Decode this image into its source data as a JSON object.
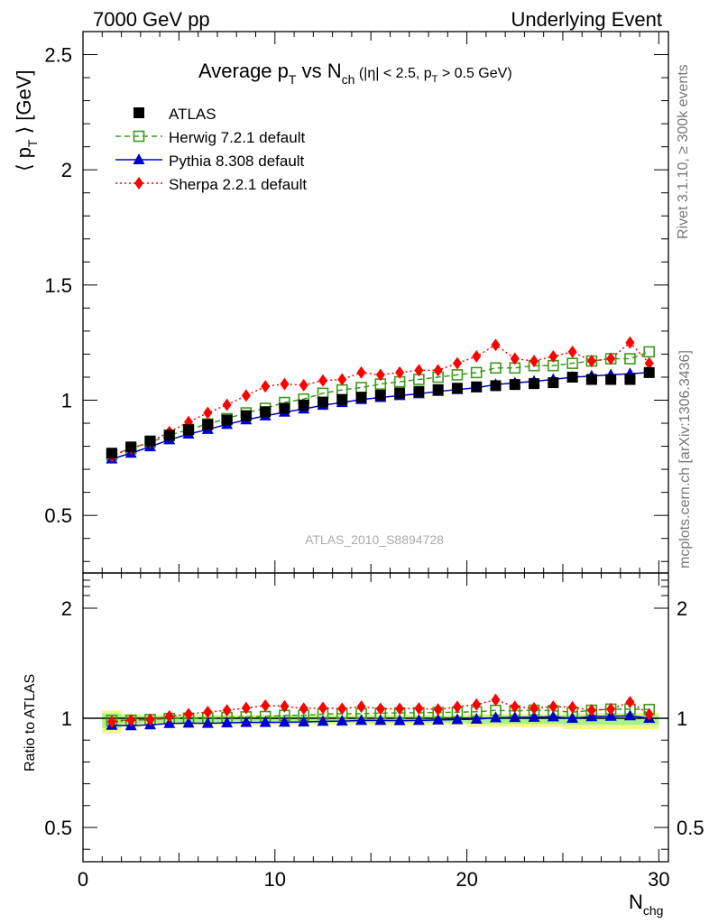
{
  "header": {
    "left": "7000 GeV pp",
    "right": "Underlying Event"
  },
  "side_text": {
    "rivet": "Rivet 3.1.10, ≥ 300k events",
    "mcplots": "mcplots.cern.ch [arXiv:1306.3436]"
  },
  "watermark": "ATLAS_2010_S8894728",
  "chart_data": {
    "type": "scatter",
    "title": "Average p_T vs N_ch (|η| < 2.5, p_T > 0.5 GeV)",
    "title_parts": {
      "main": "Average p",
      "main_sub": "T",
      "vs": " vs N",
      "vs_sub": "ch",
      "cut1": " (|η| < 2.5, p",
      "cut_sub": "T",
      "cut2": " > 0.5 GeV)"
    },
    "ylabel": "⟨ p_T ⟩ [GeV]",
    "ylabel_parts": {
      "pre": "⟨ p",
      "sub": "T",
      "post": " ⟩ [GeV]"
    },
    "xlabel": "N_chg",
    "xlabel_parts": {
      "main": "N",
      "sub": "chg"
    },
    "ratio_ylabel": "Ratio to ATLAS",
    "xlim": [
      0,
      30.5
    ],
    "ylim": [
      0.25,
      2.6
    ],
    "ratio_ylim": [
      0.35,
      2.25
    ],
    "x_ticks": [
      "0",
      "10",
      "20",
      "30"
    ],
    "y_ticks": [
      "0.5",
      "1",
      "1.5",
      "2",
      "2.5"
    ],
    "ratio_ticks": [
      "0.5",
      "1",
      "2"
    ],
    "legend_position": "top-left",
    "x": [
      1.5,
      2.5,
      3.5,
      4.5,
      5.5,
      6.5,
      7.5,
      8.5,
      9.5,
      10.5,
      11.5,
      12.5,
      13.5,
      14.5,
      15.5,
      16.5,
      17.5,
      18.5,
      19.5,
      20.5,
      21.5,
      22.5,
      23.5,
      24.5,
      25.5,
      26.5,
      27.5,
      28.5,
      29.5
    ],
    "series": [
      {
        "name": "ATLAS",
        "color": "#000000",
        "marker": "square",
        "values": [
          0.77,
          0.797,
          0.823,
          0.848,
          0.872,
          0.894,
          0.914,
          0.933,
          0.95,
          0.965,
          0.979,
          0.992,
          1.003,
          1.013,
          1.022,
          1.031,
          1.038,
          1.046,
          1.052,
          1.058,
          1.063,
          1.068,
          1.072,
          1.076,
          1.1,
          1.09,
          1.09,
          1.09,
          1.12
        ]
      },
      {
        "name": "Herwig 7.2.1 default",
        "color": "#3a9a1a",
        "marker": "open-square",
        "line": "dashed",
        "values": [
          0.762,
          0.79,
          0.818,
          0.847,
          0.873,
          0.897,
          0.92,
          0.945,
          0.965,
          0.99,
          1.005,
          1.03,
          1.045,
          1.055,
          1.07,
          1.08,
          1.09,
          1.1,
          1.11,
          1.12,
          1.14,
          1.14,
          1.15,
          1.15,
          1.16,
          1.17,
          1.18,
          1.18,
          1.21
        ]
      },
      {
        "name": "Pythia 8.308 default",
        "color": "#0000cc",
        "marker": "triangle",
        "line": "solid",
        "values": [
          0.745,
          0.77,
          0.798,
          0.828,
          0.853,
          0.873,
          0.895,
          0.915,
          0.932,
          0.948,
          0.962,
          0.978,
          0.99,
          1.003,
          1.012,
          1.02,
          1.028,
          1.038,
          1.046,
          1.054,
          1.068,
          1.075,
          1.082,
          1.09,
          1.1,
          1.105,
          1.11,
          1.115,
          1.12
        ]
      },
      {
        "name": "Sherpa 2.2.1 default",
        "color": "#ff0000",
        "marker": "diamond",
        "line": "dotted",
        "values": [
          0.758,
          0.79,
          0.818,
          0.862,
          0.905,
          0.945,
          0.98,
          1.02,
          1.06,
          1.07,
          1.065,
          1.085,
          1.09,
          1.12,
          1.11,
          1.12,
          1.13,
          1.13,
          1.16,
          1.19,
          1.24,
          1.18,
          1.17,
          1.19,
          1.21,
          1.17,
          1.18,
          1.25,
          1.16
        ]
      }
    ],
    "ratio_series": [
      {
        "name": "Herwig 7.2.1 default",
        "values": [
          0.99,
          0.991,
          0.994,
          0.999,
          1.001,
          1.003,
          1.007,
          1.013,
          1.016,
          1.026,
          1.027,
          1.038,
          1.042,
          1.042,
          1.047,
          1.048,
          1.05,
          1.052,
          1.055,
          1.059,
          1.072,
          1.067,
          1.073,
          1.069,
          1.055,
          1.073,
          1.083,
          1.083,
          1.08
        ]
      },
      {
        "name": "Pythia 8.308 default",
        "values": [
          0.968,
          0.966,
          0.97,
          0.976,
          0.978,
          0.977,
          0.979,
          0.981,
          0.981,
          0.982,
          0.983,
          0.986,
          0.987,
          0.99,
          0.99,
          0.989,
          0.99,
          0.992,
          0.994,
          0.996,
          1.005,
          1.007,
          1.009,
          1.013,
          1.0,
          1.014,
          1.018,
          1.023,
          1.0
        ]
      },
      {
        "name": "Sherpa 2.2.1 default",
        "values": [
          0.984,
          0.991,
          0.994,
          1.017,
          1.038,
          1.057,
          1.072,
          1.093,
          1.116,
          1.109,
          1.088,
          1.094,
          1.087,
          1.106,
          1.086,
          1.086,
          1.089,
          1.08,
          1.103,
          1.125,
          1.167,
          1.105,
          1.091,
          1.106,
          1.1,
          1.073,
          1.083,
          1.147,
          1.036
        ]
      }
    ],
    "uncertainty_band": {
      "inner_halfwidth": [
        0.045,
        0.025,
        0.02,
        0.02,
        0.02,
        0.02,
        0.02,
        0.02,
        0.02,
        0.02,
        0.02,
        0.02,
        0.02,
        0.02,
        0.02,
        0.02,
        0.02,
        0.02,
        0.02,
        0.025,
        0.025,
        0.025,
        0.025,
        0.025,
        0.03,
        0.03,
        0.03,
        0.03,
        0.03
      ],
      "outer_halfwidth": [
        0.07,
        0.04,
        0.03,
        0.03,
        0.03,
        0.03,
        0.03,
        0.03,
        0.03,
        0.03,
        0.03,
        0.03,
        0.03,
        0.03,
        0.03,
        0.03,
        0.03,
        0.03,
        0.03,
        0.04,
        0.04,
        0.04,
        0.04,
        0.04,
        0.05,
        0.05,
        0.05,
        0.05,
        0.05
      ]
    }
  }
}
